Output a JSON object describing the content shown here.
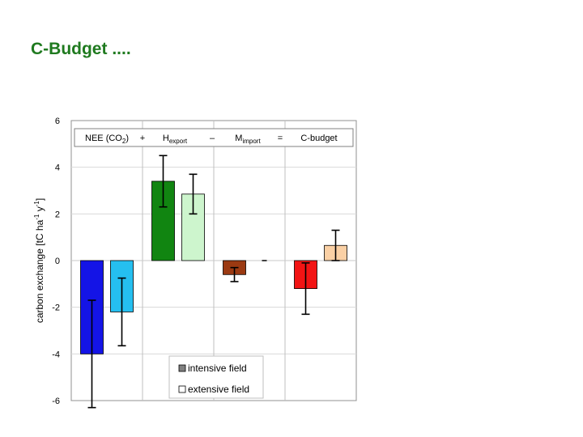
{
  "slide": {
    "title": "C-Budget ...."
  },
  "chart_data": {
    "type": "bar",
    "ylabel": "carbon exchange [tC ha-1 y-1]",
    "ylim": [
      -6,
      6
    ],
    "yticks": [
      "6",
      "4",
      "2",
      "0",
      "-2",
      "-4",
      "-6"
    ],
    "grid": true,
    "groups": [
      {
        "term": "NEE (CO2)",
        "operator": "+"
      },
      {
        "term": "Hexport",
        "operator": "–"
      },
      {
        "term": "Mimport",
        "operator": "="
      },
      {
        "term": "C-budget",
        "operator": ""
      }
    ],
    "series": [
      {
        "name": "intensive field",
        "values": [
          -4.0,
          3.4,
          -0.6,
          -1.2
        ],
        "errors": [
          2.3,
          1.1,
          0.3,
          1.1
        ],
        "colors": [
          "#1414e6",
          "#118511",
          "#9b3a12",
          "#f21414"
        ]
      },
      {
        "name": "extensive field",
        "values": [
          -2.2,
          2.85,
          0.0,
          0.65
        ],
        "errors": [
          1.45,
          0.85,
          0.0,
          0.65
        ],
        "colors": [
          "#25bff0",
          "#cdf5cd",
          "#000000",
          "#fad0a5"
        ]
      }
    ],
    "legend": {
      "placement": "bottom",
      "intensive_color": "#808080",
      "extensive_color": "#ffffff"
    }
  }
}
